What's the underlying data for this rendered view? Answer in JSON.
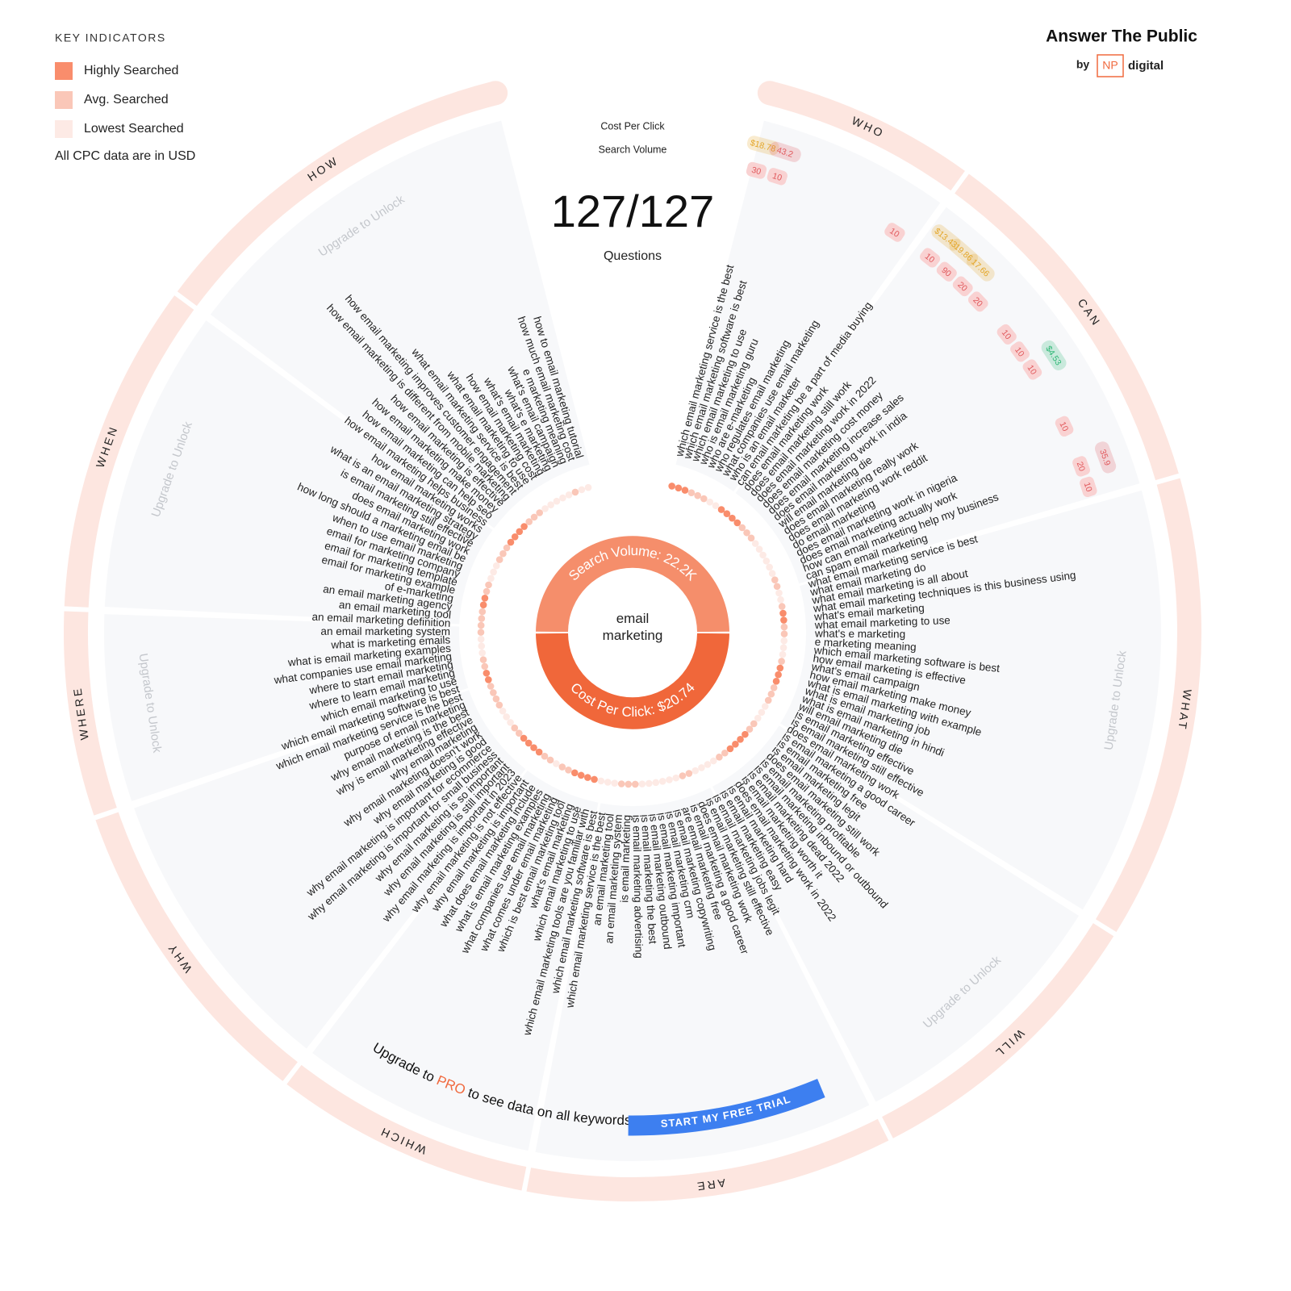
{
  "legend": {
    "title": "KEY INDICATORS",
    "items": [
      {
        "label": "Highly Searched",
        "color": "#f98d6c"
      },
      {
        "label": "Avg. Searched",
        "color": "#fac7b8"
      },
      {
        "label": "Lowest Searched",
        "color": "#fdeae5"
      }
    ],
    "note": "All CPC data are in USD"
  },
  "brand": {
    "name": "Answer The Public",
    "by": "by",
    "np": "NP",
    "digital": "digital"
  },
  "badge_legend": {
    "cpc": "Cost Per Click",
    "volume": "Search Volume"
  },
  "count": "127/127",
  "count_label": "Questions",
  "keyword": "email marketing",
  "search_volume": {
    "label": "Search Volume:",
    "value": "22.2K"
  },
  "cost_per_click": {
    "label": "Cost Per Click:",
    "value": "$20.74"
  },
  "segments": [
    {
      "name": "WHO"
    },
    {
      "name": "CAN"
    },
    {
      "name": "WHAT",
      "note": "Upgrade to Unlock"
    },
    {
      "name": "WILL",
      "note": "Upgrade to Unlock"
    },
    {
      "name": "ARE"
    },
    {
      "name": "WHICH"
    },
    {
      "name": "WHY"
    },
    {
      "name": "WHERE",
      "note": "Upgrade to Unlock"
    },
    {
      "name": "WHEN",
      "note": "Upgrade to Unlock"
    },
    {
      "name": "HOW",
      "note": "Upgrade to Unlock"
    }
  ],
  "questions": [
    {
      "text": "which email marketing service is the best",
      "level": 0,
      "volume": 30,
      "cpc": "$18.78",
      "cpc_color": "#e3a526"
    },
    {
      "text": "which email marketing software is best",
      "level": 0,
      "volume": 10,
      "cpc": "43.2",
      "cpc_color": "#e0575b"
    },
    {
      "text": "which email marketing to use",
      "level": 0
    },
    {
      "text": "who is email marketing guru",
      "level": 1
    },
    {
      "text": "who are e-marketing",
      "level": 1
    },
    {
      "text": "who regulates email marketing",
      "level": 1
    },
    {
      "text": "what companies use email marketing",
      "level": 2
    },
    {
      "text": "who is an email marketer",
      "level": 2,
      "volume": 10
    },
    {
      "text": "can email marketing be a part of media buying",
      "level": 0
    },
    {
      "text": "does email marketing work",
      "level": 0,
      "volume": 10,
      "cpc": "$13.43",
      "cpc_color": "#e3a526"
    },
    {
      "text": "does email marketing still work",
      "level": 0,
      "volume": 90,
      "cpc": "19.86",
      "cpc_color": "#e3a526"
    },
    {
      "text": "does email marketing work in 2022",
      "level": 0,
      "volume": 20,
      "cpc": "17.66",
      "cpc_color": "#e3a526"
    },
    {
      "text": "does email marketing cost money",
      "level": 1,
      "volume": 20
    },
    {
      "text": "does email marketing increase sales",
      "level": 1
    },
    {
      "text": "does email marketing work in india",
      "level": 1,
      "volume": 10
    },
    {
      "text": "will email marketing die",
      "level": 2,
      "volume": 10
    },
    {
      "text": "does email marketing really work",
      "level": 2,
      "volume": 10,
      "cpc": "$4.53",
      "cpc_color": "#2bb673"
    },
    {
      "text": "does email marketing work reddit",
      "level": 2
    },
    {
      "text": "do email marketing",
      "level": 2
    },
    {
      "text": "does email marketing work in nigeria",
      "level": 2,
      "volume": 10
    },
    {
      "text": "does email marketing actually work",
      "level": 2
    },
    {
      "text": "how can email marketing help my business",
      "level": 1,
      "volume": 20,
      "cpc": "35.9",
      "cpc_color": "#e0575b"
    },
    {
      "text": "can spam email marketing",
      "level": 1,
      "volume": 10
    },
    {
      "text": "what email marketing service is best",
      "level": 2
    },
    {
      "text": "what email marketing do",
      "level": 2
    },
    {
      "text": "what email marketing is all about",
      "level": 1
    },
    {
      "text": "what email marketing techniques is this business using",
      "level": 0
    },
    {
      "text": "what's email marketing",
      "level": 0
    },
    {
      "text": "what email marketing to use",
      "level": 1
    },
    {
      "text": "what's e marketing",
      "level": 1
    },
    {
      "text": "e marketing meaning",
      "level": 2
    },
    {
      "text": "which email marketing software is best",
      "level": 2
    },
    {
      "text": "how email marketing is effective",
      "level": 2
    },
    {
      "text": "what's email campaign",
      "level": 1
    },
    {
      "text": "how email marketing make money",
      "level": 0
    },
    {
      "text": "what is email marketing with example",
      "level": 0
    },
    {
      "text": "what is email marketing job",
      "level": 0
    },
    {
      "text": "what is email marketing in hindi",
      "level": 1
    },
    {
      "text": "will email marketing die",
      "level": 1
    },
    {
      "text": "is email marketing effective",
      "level": 1
    },
    {
      "text": "is email marketing still effective",
      "level": 2
    },
    {
      "text": "does email marketing work",
      "level": 2
    },
    {
      "text": "is email marketing a good career",
      "level": 2
    },
    {
      "text": "is email marketing free",
      "level": 1
    },
    {
      "text": "is email marketing legit",
      "level": 1
    },
    {
      "text": "does email marketing still work",
      "level": 0
    },
    {
      "text": "is email marketing profitable",
      "level": 0
    },
    {
      "text": "is email marketing inbound or outbound",
      "level": 0
    },
    {
      "text": "is email marketing dead 2022",
      "level": 0
    },
    {
      "text": "is email marketing worth it",
      "level": 1
    },
    {
      "text": "does email marketing work in 2022",
      "level": 1
    },
    {
      "text": "is email marketing hard",
      "level": 2
    },
    {
      "text": "is email marketing easy",
      "level": 2
    },
    {
      "text": "is email marketing jobs legit",
      "level": 2
    },
    {
      "text": "is email marketing still effective",
      "level": 2
    },
    {
      "text": "does email marketing work",
      "level": 1
    },
    {
      "text": "is email marketing a good career",
      "level": 1
    },
    {
      "text": "are email marketing free",
      "level": 2
    },
    {
      "text": "is email marketing copywriting",
      "level": 2
    },
    {
      "text": "is email marketing crm",
      "level": 2
    },
    {
      "text": "is email marketing important",
      "level": 2
    },
    {
      "text": "is email marketing outbound",
      "level": 2
    },
    {
      "text": "is email marketing the best",
      "level": 2
    },
    {
      "text": "is email marketing advertising",
      "level": 1
    },
    {
      "text": "is email marketing",
      "level": 1
    },
    {
      "text": "an email marketing system",
      "level": 1
    },
    {
      "text": "an email marketing tool",
      "level": 2
    },
    {
      "text": "which email marketing service is the best",
      "level": 2
    },
    {
      "text": "which email marketing software is best",
      "level": 2
    },
    {
      "text": "which email marketing tools are you familiar with",
      "level": 0
    },
    {
      "text": "which email marketing to use",
      "level": 0
    },
    {
      "text": "what's email marketing",
      "level": 0
    },
    {
      "text": "which is best email marketing tool",
      "level": 0
    },
    {
      "text": "what comes under email marketing",
      "level": 1
    },
    {
      "text": "what companies use email marketing",
      "level": 1
    },
    {
      "text": "what is email marketing examples",
      "level": 2
    },
    {
      "text": "what does email marketing include",
      "level": 1
    },
    {
      "text": "why email marketing is important",
      "level": 1
    },
    {
      "text": "why email marketing is not effective",
      "level": 0
    },
    {
      "text": "why email marketing is important in 2023",
      "level": 0
    },
    {
      "text": "why email marketing is still important",
      "level": 0
    },
    {
      "text": "why email marketing is so important",
      "level": 0
    },
    {
      "text": "why email marketing is important for small business",
      "level": 1
    },
    {
      "text": "why email marketing is important for ecommerce",
      "level": 1
    },
    {
      "text": "why email marketing is good",
      "level": 2
    },
    {
      "text": "why email marketing doesn't work",
      "level": 2
    },
    {
      "text": "why email marketing",
      "level": 2
    },
    {
      "text": "why is email marketing effective",
      "level": 1
    },
    {
      "text": "why email marketing is the best",
      "level": 1
    },
    {
      "text": "purpose of email marketing",
      "level": 1
    },
    {
      "text": "which email marketing service is the best",
      "level": 1
    },
    {
      "text": "which email marketing software is best",
      "level": 0
    },
    {
      "text": "which email marketing to use",
      "level": 0
    },
    {
      "text": "where to learn email marketing",
      "level": 1
    },
    {
      "text": "where to start email marketing",
      "level": 1
    },
    {
      "text": "what companies use email marketing",
      "level": 2
    },
    {
      "text": "what is email marketing examples",
      "level": 2
    },
    {
      "text": "what is marketing emails",
      "level": 2
    },
    {
      "text": "an email marketing system",
      "level": 1
    },
    {
      "text": "an email marketing definition",
      "level": 1
    },
    {
      "text": "an email marketing tool",
      "level": 1
    },
    {
      "text": "an email marketing agency",
      "level": 1
    },
    {
      "text": "of e-marketing",
      "level": 0
    },
    {
      "text": "email for marketing example",
      "level": 0
    },
    {
      "text": "email for marketing template",
      "level": 1
    },
    {
      "text": "email for marketing company",
      "level": 1
    },
    {
      "text": "when to use email marketing",
      "level": 2
    },
    {
      "text": "how long should a marketing email be",
      "level": 2
    },
    {
      "text": "does email marketing work",
      "level": 2
    },
    {
      "text": "is email marketing still effective",
      "level": 1
    },
    {
      "text": "what is an email marketing strategy",
      "level": 1
    },
    {
      "text": "how email marketing works",
      "level": 1
    },
    {
      "text": "how email marketing helps business",
      "level": 0
    },
    {
      "text": "how email marketing can help seo",
      "level": 0
    },
    {
      "text": "how email marketing make money",
      "level": 0
    },
    {
      "text": "how email marketing is effective",
      "level": 0
    },
    {
      "text": "how email marketing is different from mobile marketing",
      "level": 1
    },
    {
      "text": "how email marketing improves customer engagement",
      "level": 1
    },
    {
      "text": "what email marketing service is best",
      "level": 1
    },
    {
      "text": "what email marketing to use",
      "level": 2
    },
    {
      "text": "how email marketing cost",
      "level": 2
    },
    {
      "text": "what's email marketing",
      "level": 2
    },
    {
      "text": "what's e marketing",
      "level": 2
    },
    {
      "text": "what's email campaign",
      "level": 2
    },
    {
      "text": "e marketing meaning",
      "level": 1
    },
    {
      "text": "how much email marketing cost",
      "level": 2
    },
    {
      "text": "how to email marketing tutorial",
      "level": 2
    }
  ],
  "upgrade": {
    "before": "Upgrade to",
    "pro": "PRO",
    "after": "to see data on all keywords",
    "button": "START MY FREE TRIAL"
  }
}
